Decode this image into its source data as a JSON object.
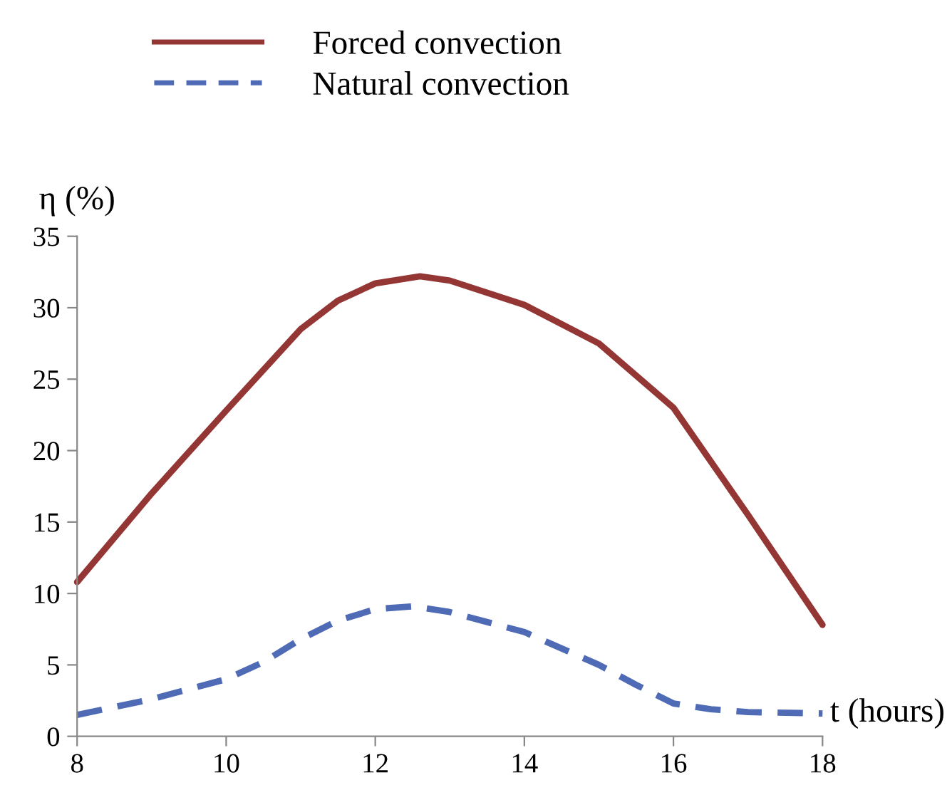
{
  "chart_data": {
    "type": "line",
    "xlabel": "t (hours)",
    "ylabel": "η (%)",
    "xlim": [
      8,
      18
    ],
    "xticks": [
      8,
      10,
      12,
      14,
      16,
      18
    ],
    "ylim": [
      0,
      35
    ],
    "yticks": [
      0,
      5,
      10,
      15,
      20,
      25,
      30,
      35
    ],
    "grid": false,
    "legend": "top",
    "marker": "none",
    "series": [
      {
        "name": "Forced convection",
        "color": "#943634",
        "line_style": "solid",
        "x": [
          8,
          9,
          10,
          11,
          11.5,
          12,
          12.6,
          13,
          14,
          15,
          16,
          17,
          18
        ],
        "values": [
          10.8,
          17,
          22.8,
          28.5,
          30.5,
          31.7,
          32.2,
          31.9,
          30.2,
          27.5,
          23,
          15.5,
          7.8
        ]
      },
      {
        "name": "Natural convection",
        "color": "#4f6bb5",
        "line_style": "dashed",
        "x": [
          8,
          9,
          10,
          10.5,
          11,
          11.5,
          12,
          12.5,
          13,
          14,
          15,
          15.5,
          16,
          16.5,
          17,
          18
        ],
        "values": [
          1.5,
          2.6,
          4,
          5.2,
          6.8,
          8.1,
          8.9,
          9.1,
          8.7,
          7.3,
          5,
          3.6,
          2.3,
          1.9,
          1.7,
          1.6
        ]
      }
    ]
  }
}
